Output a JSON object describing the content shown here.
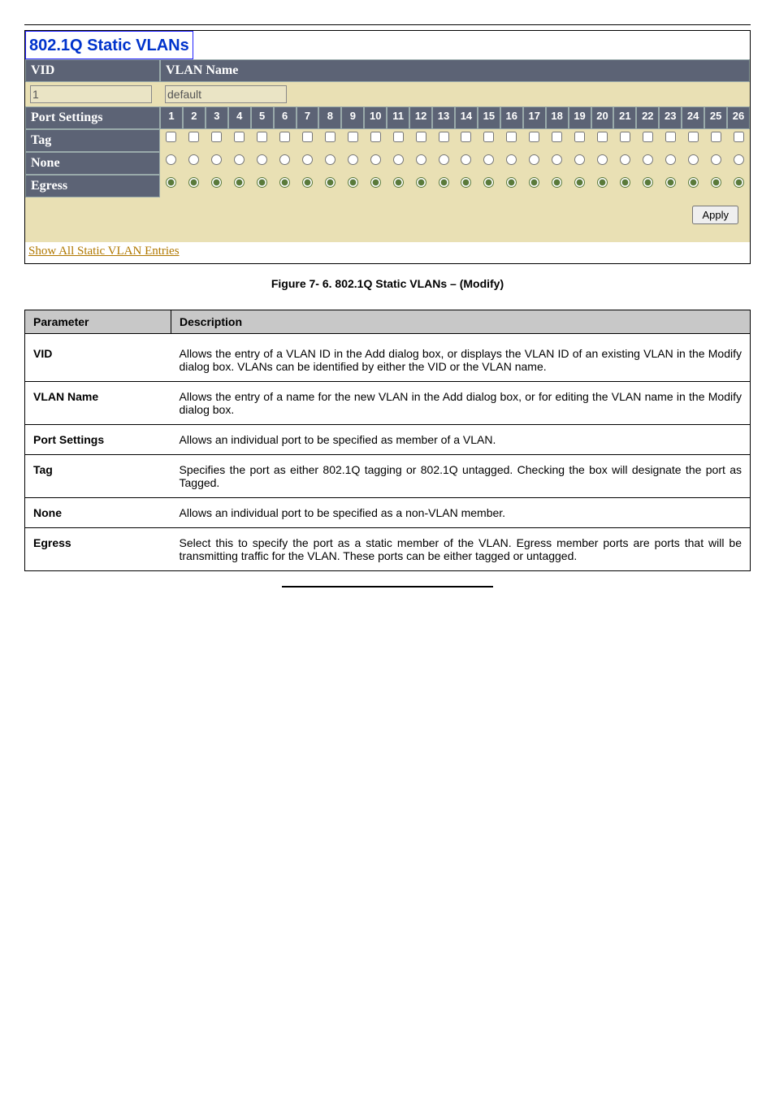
{
  "panel": {
    "title": "802.1Q Static VLANs",
    "vid_label": "VID",
    "vlan_name_label": "VLAN Name",
    "vid_value": "1",
    "vlan_name_value": "default",
    "port_settings_label": "Port Settings",
    "port_count": 26,
    "rows": [
      {
        "key": "tag",
        "label": "Tag",
        "type": "checkbox",
        "selected": false
      },
      {
        "key": "none",
        "label": "None",
        "type": "radio",
        "selected": false
      },
      {
        "key": "egress",
        "label": "Egress",
        "type": "radio",
        "selected": true
      }
    ],
    "apply_label": "Apply",
    "link_text": "Show All Static VLAN Entries"
  },
  "caption": "Figure 7- 6. 802.1Q Static VLANs – (Modify)",
  "table": {
    "header_param": "Parameter",
    "header_desc": "Description",
    "rows": [
      {
        "name": "VID",
        "desc": "Allows the entry of a VLAN ID in the Add dialog box, or displays the VLAN ID of an existing VLAN in the Modify dialog box. VLANs can be identified by either the VID or the VLAN name."
      },
      {
        "name": "VLAN Name",
        "desc": "Allows the entry of a name for the new VLAN in the Add dialog box, or for editing the VLAN name in the Modify dialog box."
      },
      {
        "name": "Port Settings",
        "desc": "Allows an individual port to be specified as member of a VLAN."
      },
      {
        "name": "Tag",
        "desc": "Specifies the port as either 802.1Q tagging or 802.1Q untagged. Checking the box will designate the port as Tagged."
      },
      {
        "name": "None",
        "desc": "Allows an individual port to be specified as a non-VLAN member."
      },
      {
        "name": "Egress",
        "desc": "Select this to specify the port as a static member of the VLAN. Egress member ports are ports that will be transmitting traffic for the VLAN. These ports can be either tagged or untagged."
      }
    ]
  },
  "colors": {
    "header_bg": "#5c6375",
    "body_bg": "#e9e0b4",
    "link": "#b07800",
    "title": "#0033cc"
  }
}
